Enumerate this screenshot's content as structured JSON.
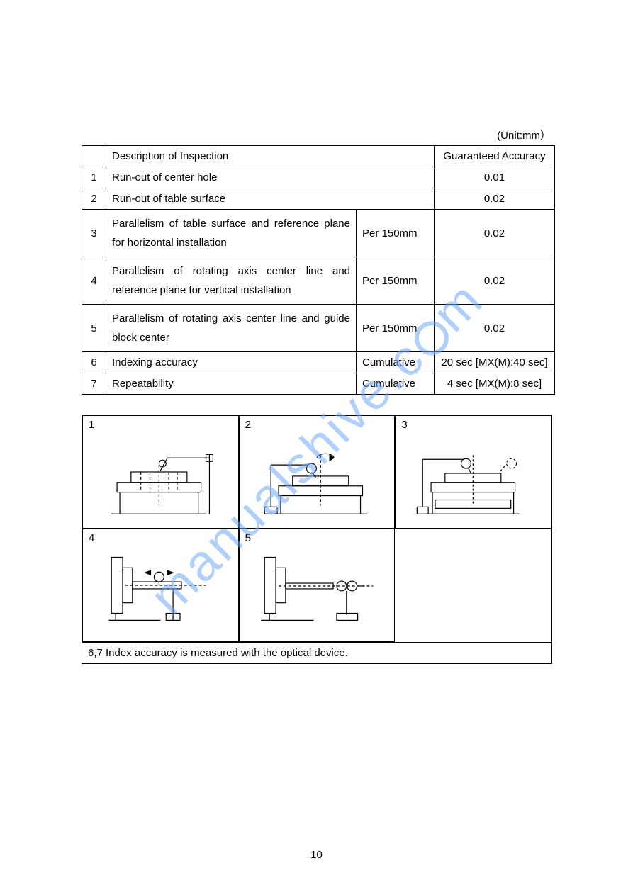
{
  "unit_label": "(Unit:mm）",
  "columns": {
    "desc": "Description of Inspection",
    "acc": "Guaranteed Accuracy"
  },
  "rows": [
    {
      "n": "1",
      "desc": "Run-out of center hole",
      "cond": "",
      "acc": "0.01",
      "colspan": 2
    },
    {
      "n": "2",
      "desc": "Run-out of table surface",
      "cond": "",
      "acc": "0.02",
      "colspan": 2
    },
    {
      "n": "3",
      "desc": "Parallelism of table surface and reference plane for horizontal installation",
      "cond": "Per 150mm",
      "acc": "0.02",
      "colspan": 1
    },
    {
      "n": "4",
      "desc": "Parallelism of rotating axis center line and reference plane for vertical installation",
      "cond": "Per 150mm",
      "acc": "0.02",
      "colspan": 1
    },
    {
      "n": "5",
      "desc": "Parallelism of rotating axis center line and guide block center",
      "cond": "Per 150mm",
      "acc": "0.02",
      "colspan": 1
    },
    {
      "n": "6",
      "desc": "Indexing accuracy",
      "cond": "Cumulative",
      "acc": "20 sec [MX(M):40 sec]",
      "colspan": 1
    },
    {
      "n": "7",
      "desc": "Repeatability",
      "cond": "Cumulative",
      "acc": "4 sec [MX(M):8 sec]",
      "colspan": 1
    }
  ],
  "diagrams": {
    "labels": [
      "1",
      "2",
      "3",
      "4",
      "5"
    ],
    "footnote": "6,7 Index accuracy is measured with the optical device."
  },
  "page_number": "10",
  "watermark": {
    "text_prefix": "manualshive.c",
    "text_suffix": "m"
  }
}
